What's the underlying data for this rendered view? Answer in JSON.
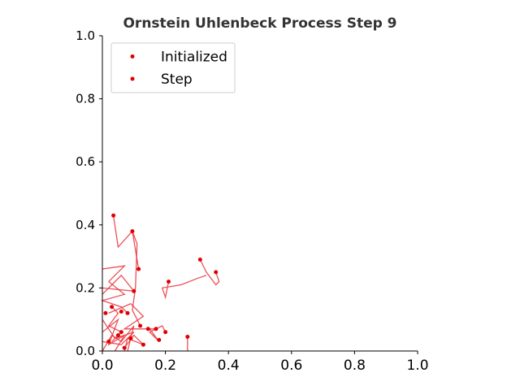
{
  "chart_data": {
    "type": "scatter",
    "title": "Ornstein Uhlenbeck Process Step 9",
    "xlabel": "",
    "ylabel": "",
    "xlim": [
      0,
      1
    ],
    "ylim": [
      0,
      1
    ],
    "x_ticks": [
      "0.0",
      "0.2",
      "0.4",
      "0.6",
      "0.8",
      "1.0"
    ],
    "y_ticks": [
      "0.0",
      "0.2",
      "0.4",
      "0.6",
      "0.8",
      "1.0"
    ],
    "grid": false,
    "legend_position": "top-left",
    "colors": {
      "line": "#e8323c",
      "point": "#e00000",
      "axis": "#000000"
    },
    "legend": [
      {
        "label": "Initialized",
        "color": "#e00000"
      },
      {
        "label": "Step",
        "color": "#e00000"
      }
    ],
    "series": [
      {
        "points": [
          [
            0.035,
            0.43
          ],
          [
            0.05,
            0.33
          ],
          [
            0.095,
            0.38
          ],
          [
            0.115,
            0.26
          ]
        ]
      },
      {
        "points": [
          [
            0.095,
            0.38
          ],
          [
            0.11,
            0.34
          ],
          [
            0.105,
            0.2
          ],
          [
            0.095,
            0.13
          ],
          [
            0.12,
            0.08
          ]
        ]
      },
      {
        "points": [
          [
            0.31,
            0.29
          ],
          [
            0.33,
            0.25
          ],
          [
            0.36,
            0.21
          ],
          [
            0.37,
            0.22
          ],
          [
            0.36,
            0.25
          ]
        ]
      },
      {
        "points": [
          [
            0.21,
            0.22
          ],
          [
            0.2,
            0.17
          ],
          [
            0.19,
            0.2
          ],
          [
            0.25,
            0.21
          ],
          [
            0.3,
            0.23
          ],
          [
            0.33,
            0.24
          ]
        ]
      },
      {
        "points": [
          [
            0.0,
            0.26
          ],
          [
            0.07,
            0.27
          ],
          [
            0.02,
            0.22
          ],
          [
            0.07,
            0.18
          ],
          [
            0.0,
            0.16
          ],
          [
            0.06,
            0.14
          ],
          [
            0.08,
            0.12
          ]
        ]
      },
      {
        "points": [
          [
            0.0,
            0.06
          ],
          [
            0.05,
            0.1
          ],
          [
            0.02,
            0.02
          ],
          [
            0.07,
            0.05
          ],
          [
            0.04,
            0.0
          ]
        ]
      },
      {
        "points": [
          [
            0.02,
            0.12
          ],
          [
            0.09,
            0.15
          ],
          [
            0.13,
            0.11
          ],
          [
            0.07,
            0.07
          ],
          [
            0.17,
            0.07
          ]
        ]
      },
      {
        "points": [
          [
            0.0,
            0.1
          ],
          [
            0.04,
            0.04
          ],
          [
            0.1,
            0.06
          ],
          [
            0.06,
            0.02
          ],
          [
            0.0,
            0.03
          ]
        ]
      },
      {
        "points": [
          [
            0.07,
            0.0
          ],
          [
            0.08,
            0.04
          ],
          [
            0.13,
            0.02
          ],
          [
            0.1,
            0.05
          ],
          [
            0.07,
            0.01
          ]
        ]
      },
      {
        "points": [
          [
            0.03,
            0.14
          ],
          [
            0.05,
            0.12
          ],
          [
            0.02,
            0.08
          ],
          [
            0.06,
            0.06
          ],
          [
            0.03,
            0.03
          ]
        ]
      },
      {
        "points": [
          [
            0.15,
            0.07
          ],
          [
            0.18,
            0.03
          ],
          [
            0.15,
            0.06
          ],
          [
            0.19,
            0.08
          ],
          [
            0.2,
            0.06
          ]
        ]
      },
      {
        "points": [
          [
            0.0,
            0.2
          ],
          [
            0.1,
            0.19
          ],
          [
            0.06,
            0.24
          ],
          [
            0.0,
            0.18
          ]
        ]
      },
      {
        "points": [
          [
            0.27,
            0.04
          ],
          [
            0.27,
            0.0
          ]
        ]
      },
      {
        "points": [
          [
            0.0,
            0.0
          ],
          [
            0.03,
            0.05
          ],
          [
            0.06,
            0.03
          ],
          [
            0.1,
            0.08
          ],
          [
            0.08,
            0.0
          ]
        ]
      }
    ],
    "markers": [
      [
        0.035,
        0.43
      ],
      [
        0.095,
        0.38
      ],
      [
        0.115,
        0.26
      ],
      [
        0.31,
        0.29
      ],
      [
        0.36,
        0.25
      ],
      [
        0.21,
        0.22
      ],
      [
        0.1,
        0.19
      ],
      [
        0.03,
        0.14
      ],
      [
        0.06,
        0.125
      ],
      [
        0.08,
        0.12
      ],
      [
        0.12,
        0.08
      ],
      [
        0.17,
        0.07
      ],
      [
        0.145,
        0.07
      ],
      [
        0.2,
        0.06
      ],
      [
        0.27,
        0.045
      ],
      [
        0.18,
        0.035
      ],
      [
        0.13,
        0.02
      ],
      [
        0.09,
        0.04
      ],
      [
        0.05,
        0.05
      ],
      [
        0.02,
        0.03
      ],
      [
        0.01,
        0.12
      ],
      [
        0.06,
        0.06
      ],
      [
        0.07,
        0.01
      ]
    ]
  }
}
